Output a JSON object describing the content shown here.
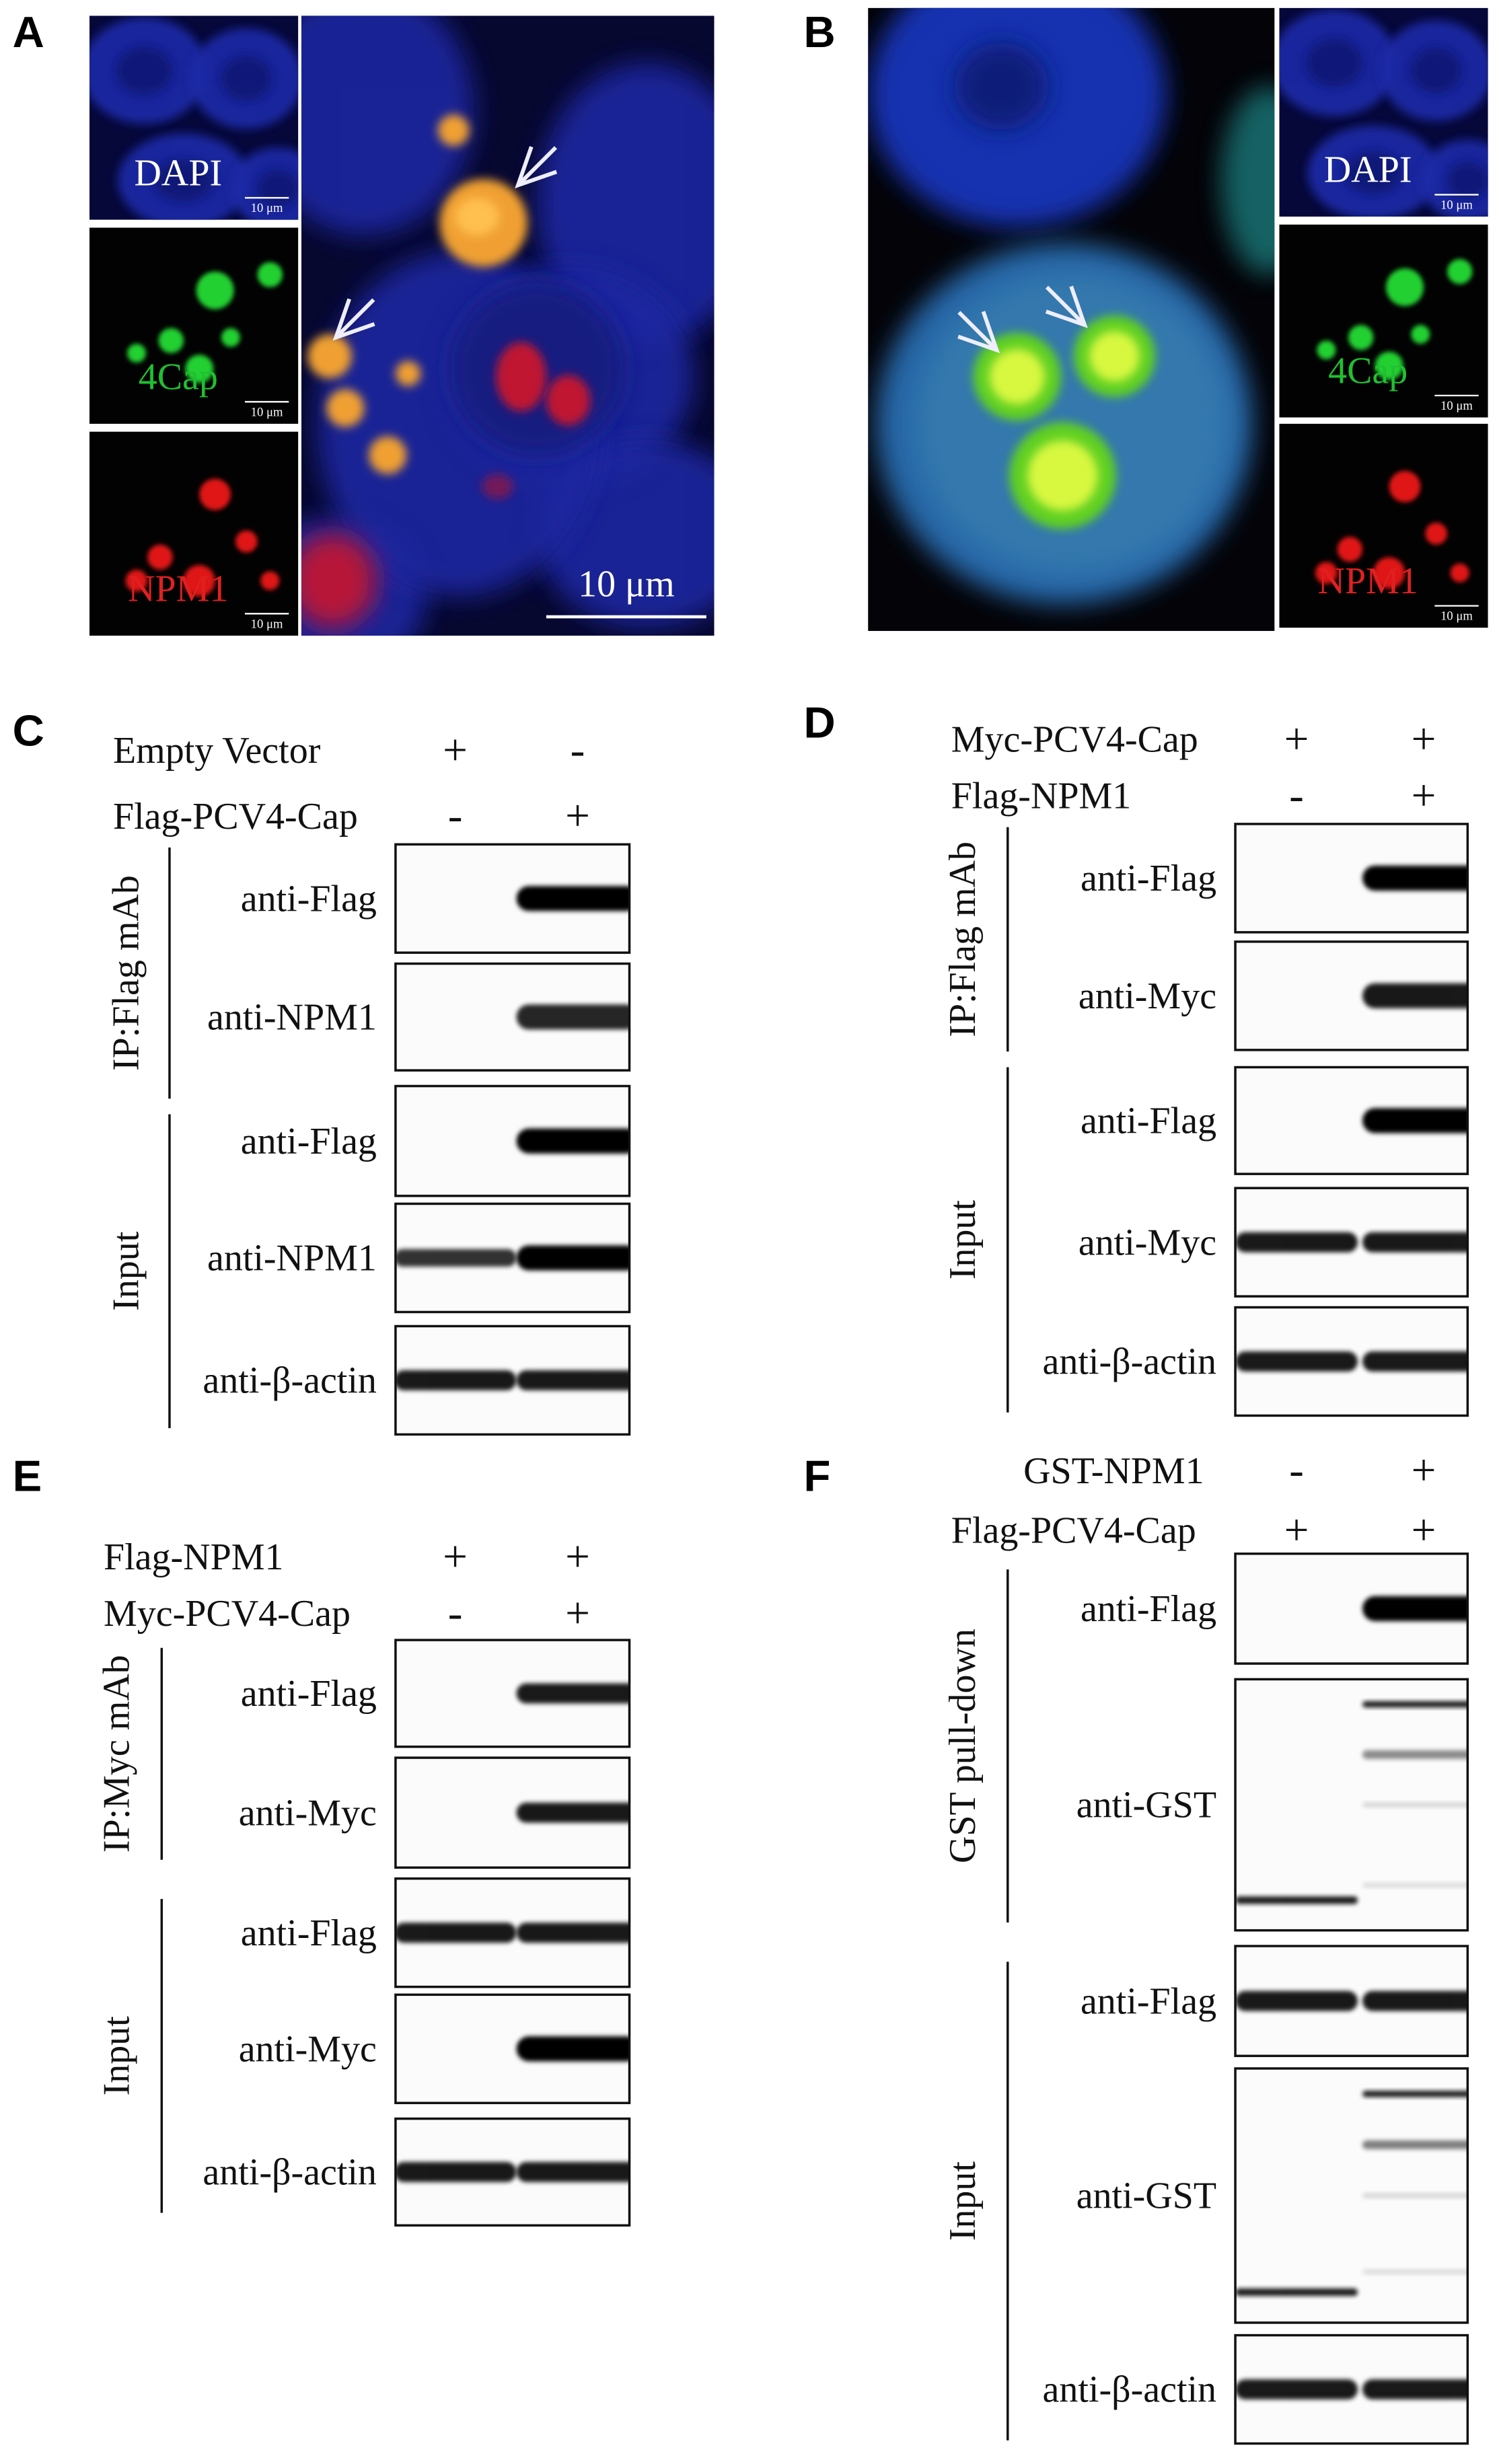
{
  "figure": {
    "panel_a": {
      "label": "A",
      "insets": [
        {
          "label": "DAPI",
          "scale": "10 μm"
        },
        {
          "label": "4Cap",
          "scale": "10 μm"
        },
        {
          "label": "NPM1",
          "scale": "10 μm"
        }
      ],
      "scale_bar": "10 μm"
    },
    "panel_b": {
      "label": "B",
      "insets": [
        {
          "label": "DAPI",
          "scale": "10 μm"
        },
        {
          "label": "4Cap",
          "scale": "10 μm"
        },
        {
          "label": "NPM1",
          "scale": "10 μm"
        }
      ]
    },
    "blots": [
      {
        "label": "C",
        "conditions": [
          {
            "name": "Empty Vector",
            "lanes": [
              "+",
              "-"
            ]
          },
          {
            "name": "Flag-PCV4-Cap",
            "lanes": [
              "-",
              "+"
            ]
          }
        ],
        "groups": [
          {
            "name": "IP:Flag mAb",
            "rows": [
              "anti-Flag",
              "anti-NPM1"
            ]
          },
          {
            "name": "Input",
            "rows": [
              "anti-Flag",
              "anti-NPM1",
              "anti-β-actin"
            ]
          }
        ]
      },
      {
        "label": "D",
        "conditions": [
          {
            "name": "Myc-PCV4-Cap",
            "lanes": [
              "+",
              "+"
            ]
          },
          {
            "name": "Flag-NPM1",
            "lanes": [
              "-",
              "+"
            ]
          }
        ],
        "groups": [
          {
            "name": "IP:Flag mAb",
            "rows": [
              "anti-Flag",
              "anti-Myc"
            ]
          },
          {
            "name": "Input",
            "rows": [
              "anti-Flag",
              "anti-Myc",
              "anti-β-actin"
            ]
          }
        ]
      },
      {
        "label": "E",
        "conditions": [
          {
            "name": "Flag-NPM1",
            "lanes": [
              "+",
              "+"
            ]
          },
          {
            "name": "Myc-PCV4-Cap",
            "lanes": [
              "-",
              "+"
            ]
          }
        ],
        "groups": [
          {
            "name": "IP:Myc mAb",
            "rows": [
              "anti-Flag",
              "anti-Myc"
            ]
          },
          {
            "name": "Input",
            "rows": [
              "anti-Flag",
              "anti-Myc",
              "anti-β-actin"
            ]
          }
        ]
      },
      {
        "label": "F",
        "conditions": [
          {
            "name": "GST-NPM1",
            "lanes": [
              "-",
              "+"
            ]
          },
          {
            "name": "Flag-PCV4-Cap",
            "lanes": [
              "+",
              "+"
            ]
          }
        ],
        "groups": [
          {
            "name": "GST pull-down",
            "rows": [
              "anti-Flag",
              "anti-GST"
            ]
          },
          {
            "name": "Input",
            "rows": [
              "anti-Flag",
              "anti-GST",
              "anti-β-actin"
            ]
          }
        ]
      }
    ]
  }
}
